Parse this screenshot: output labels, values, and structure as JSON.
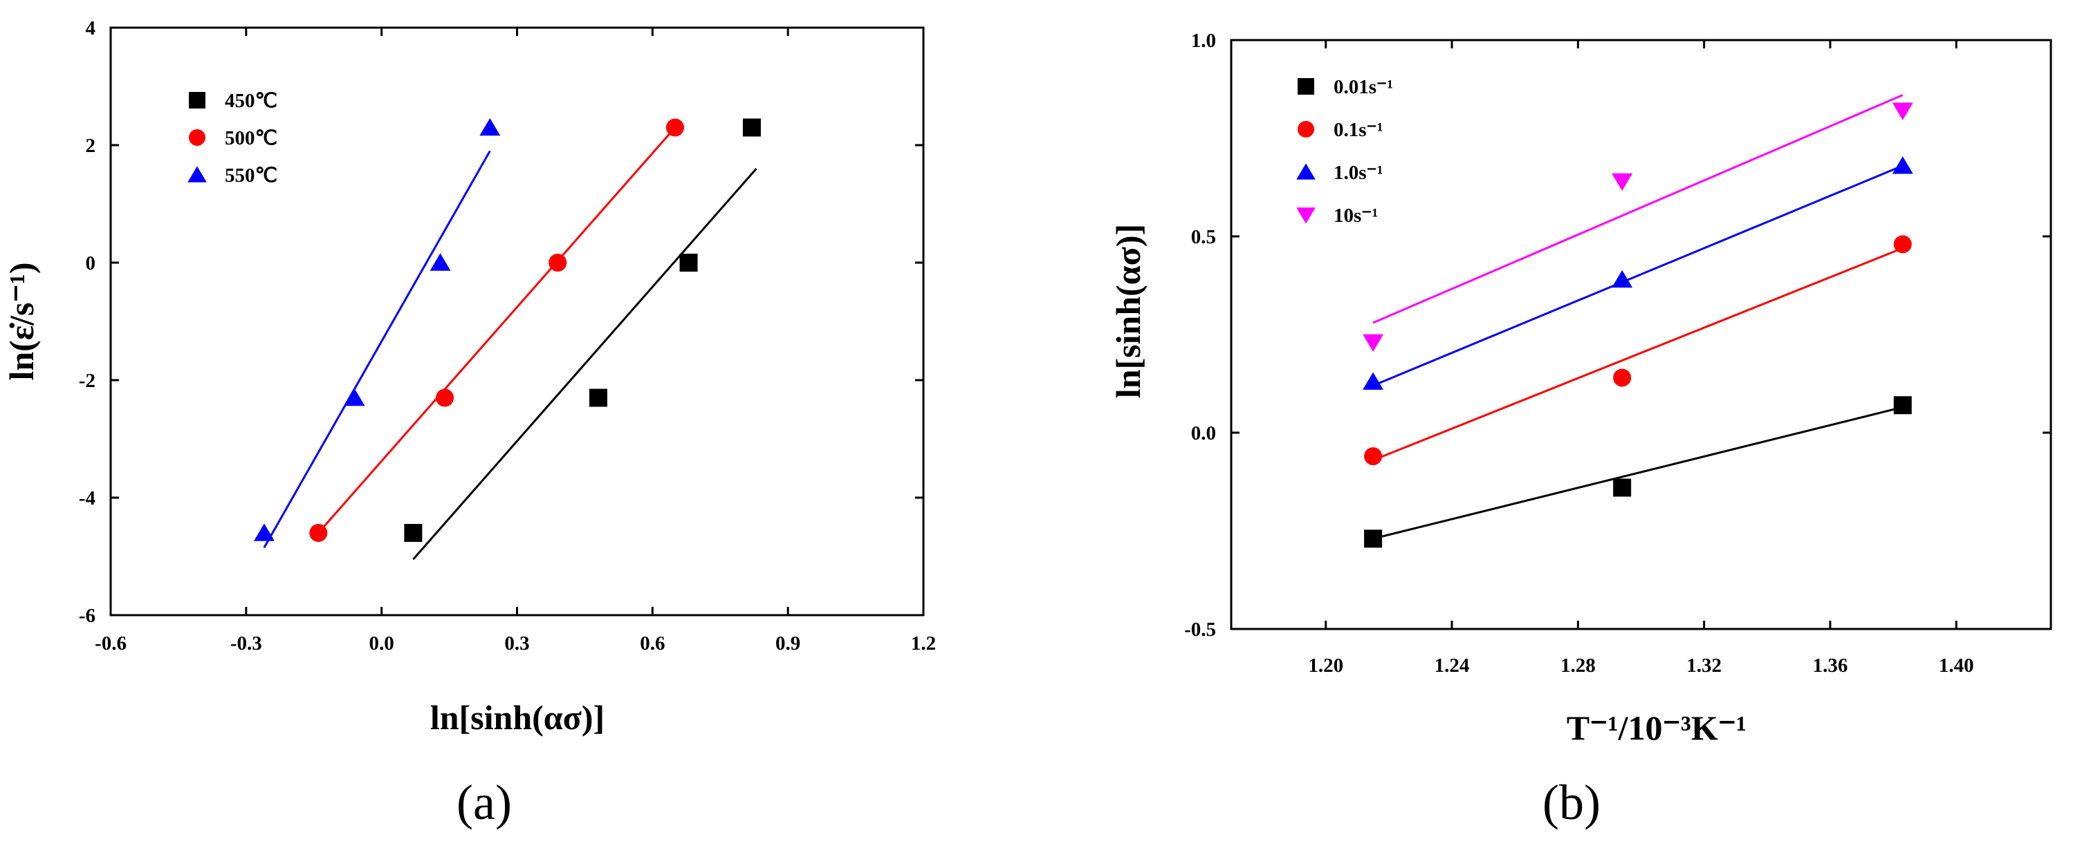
{
  "chart_data": [
    {
      "id": "a",
      "type": "scatter",
      "panel_label": "(a)",
      "xlabel": "ln[sinh(ασ)]",
      "ylabel": "ln(ε̇/s⁻¹)",
      "xlim": [
        -0.6,
        1.2
      ],
      "ylim": [
        -6,
        4
      ],
      "xticks": [
        -0.6,
        -0.3,
        0.0,
        0.3,
        0.6,
        0.9,
        1.2
      ],
      "xtick_labels": [
        "-0.6",
        "-0.3",
        "0.0",
        "0.3",
        "0.6",
        "0.9",
        "1.2"
      ],
      "yticks": [
        -6,
        -4,
        -2,
        0,
        2,
        4
      ],
      "ytick_labels": [
        "-6",
        "-4",
        "-2",
        "0",
        "2",
        "4"
      ],
      "legend_position": "top-left",
      "series": [
        {
          "name": "450℃",
          "color": "#000000",
          "marker": "square",
          "points": [
            [
              0.07,
              -4.6
            ],
            [
              0.48,
              -2.3
            ],
            [
              0.68,
              0.0
            ],
            [
              0.82,
              2.3
            ]
          ],
          "fit": [
            [
              0.07,
              -5.05
            ],
            [
              0.83,
              1.6
            ]
          ]
        },
        {
          "name": "500℃",
          "color": "#ff0000",
          "marker": "circle",
          "points": [
            [
              -0.14,
              -4.6
            ],
            [
              0.14,
              -2.3
            ],
            [
              0.39,
              0.0
            ],
            [
              0.65,
              2.3
            ]
          ],
          "fit": [
            [
              -0.14,
              -4.6
            ],
            [
              0.65,
              2.3
            ]
          ]
        },
        {
          "name": "550℃",
          "color": "#0000ff",
          "marker": "triangle-up",
          "points": [
            [
              -0.26,
              -4.6
            ],
            [
              -0.06,
              -2.3
            ],
            [
              0.13,
              0.0
            ],
            [
              0.24,
              2.3
            ]
          ],
          "fit": [
            [
              -0.26,
              -4.85
            ],
            [
              0.24,
              1.9
            ]
          ]
        }
      ]
    },
    {
      "id": "b",
      "type": "scatter",
      "panel_label": "(b)",
      "xlabel": "T⁻¹/10⁻³K⁻¹",
      "ylabel": "ln[sinh(ασ)]",
      "xlim": [
        1.17,
        1.43
      ],
      "ylim": [
        -0.5,
        1.0
      ],
      "xticks": [
        1.2,
        1.24,
        1.28,
        1.32,
        1.36,
        1.4
      ],
      "xtick_labels": [
        "1.20",
        "1.24",
        "1.28",
        "1.32",
        "1.36",
        "1.40"
      ],
      "yticks": [
        -0.5,
        0.0,
        0.5,
        1.0
      ],
      "ytick_labels": [
        "-0.5",
        "0.0",
        "0.5",
        "1.0"
      ],
      "legend_position": "top-left",
      "series": [
        {
          "name": "0.01s⁻¹",
          "color": "#000000",
          "marker": "square",
          "points": [
            [
              1.215,
              -0.27
            ],
            [
              1.294,
              -0.14
            ],
            [
              1.383,
              0.07
            ]
          ],
          "fit": [
            [
              1.215,
              -0.27
            ],
            [
              1.383,
              0.065
            ]
          ]
        },
        {
          "name": "0.1s⁻¹",
          "color": "#ff0000",
          "marker": "circle",
          "points": [
            [
              1.215,
              -0.06
            ],
            [
              1.294,
              0.14
            ],
            [
              1.383,
              0.48
            ]
          ],
          "fit": [
            [
              1.215,
              -0.07
            ],
            [
              1.383,
              0.47
            ]
          ]
        },
        {
          "name": "1.0s⁻¹",
          "color": "#0000ff",
          "marker": "triangle-up",
          "points": [
            [
              1.215,
              0.13
            ],
            [
              1.294,
              0.39
            ],
            [
              1.383,
              0.68
            ]
          ],
          "fit": [
            [
              1.215,
              0.12
            ],
            [
              1.383,
              0.68
            ]
          ]
        },
        {
          "name": "10s⁻¹",
          "color": "#ff00ff",
          "marker": "triangle-down",
          "points": [
            [
              1.215,
              0.23
            ],
            [
              1.294,
              0.64
            ],
            [
              1.383,
              0.82
            ]
          ],
          "fit": [
            [
              1.215,
              0.28
            ],
            [
              1.383,
              0.86
            ]
          ]
        }
      ]
    }
  ]
}
